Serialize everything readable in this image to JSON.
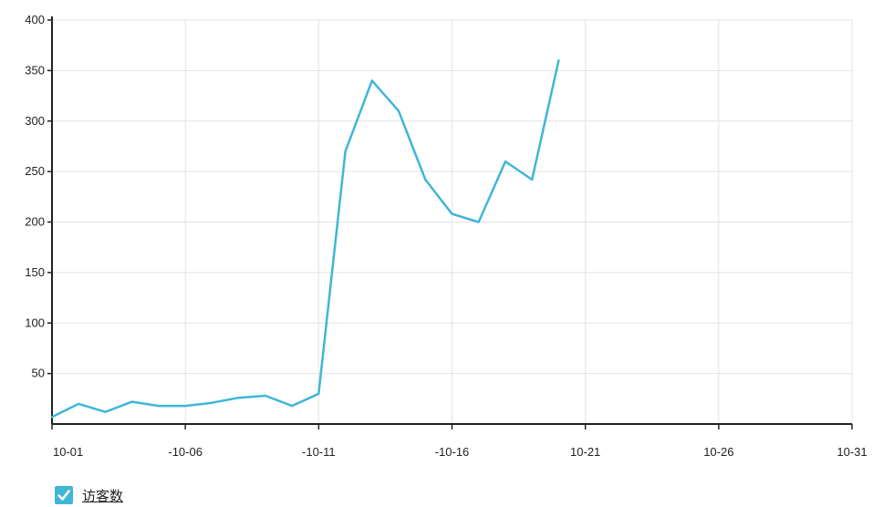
{
  "chart_data": {
    "type": "line",
    "title": "",
    "xlabel": "",
    "ylabel": "",
    "x_ticks": [
      "10-01",
      "-10-06",
      "-10-11",
      "-10-16",
      "10-21",
      "10-26",
      "10-31"
    ],
    "y_ticks": [
      50,
      100,
      150,
      200,
      250,
      300,
      350,
      400
    ],
    "xlim": [
      "10-01",
      "10-31"
    ],
    "ylim": [
      0,
      400
    ],
    "grid": true,
    "legend_position": "bottom-left",
    "series": [
      {
        "name": "访客数",
        "color": "#3fb6d6",
        "x": [
          "10-01",
          "10-02",
          "10-03",
          "10-04",
          "10-05",
          "10-06",
          "10-07",
          "10-08",
          "10-09",
          "10-10",
          "10-11",
          "10-12",
          "10-13",
          "10-14",
          "10-15",
          "10-16",
          "10-17",
          "10-18",
          "10-19",
          "10-20"
        ],
        "values": [
          7,
          20,
          12,
          22,
          18,
          18,
          21,
          26,
          28,
          18,
          30,
          270,
          340,
          310,
          242,
          208,
          200,
          260,
          242,
          360
        ]
      }
    ]
  },
  "legend": {
    "checked": true
  }
}
